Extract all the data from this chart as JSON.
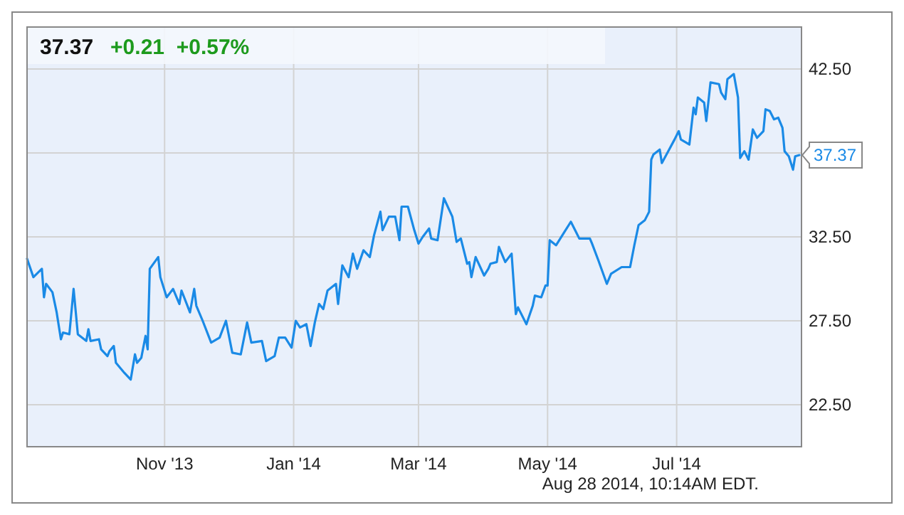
{
  "chart_data": {
    "type": "line",
    "title": "37.37",
    "subtitle": "+0.21  +0.57%",
    "x": [
      "2013-08-28",
      "2013-08-31",
      "2013-09-04",
      "2013-09-05",
      "2013-09-06",
      "2013-09-09",
      "2013-09-11",
      "2013-09-13",
      "2013-09-14",
      "2013-09-17",
      "2013-09-19",
      "2013-09-21",
      "2013-09-25",
      "2013-09-26",
      "2013-09-27",
      "2013-10-01",
      "2013-10-02",
      "2013-10-05",
      "2013-10-06",
      "2013-10-08",
      "2013-10-09",
      "2013-10-13",
      "2013-10-16",
      "2013-10-18",
      "2013-10-19",
      "2013-10-21",
      "2013-10-23",
      "2013-10-24",
      "2013-10-25",
      "2013-10-29",
      "2013-10-30",
      "2013-11-02",
      "2013-11-05",
      "2013-11-08",
      "2013-11-09",
      "2013-11-13",
      "2013-11-15",
      "2013-11-16",
      "2013-11-19",
      "2013-11-23",
      "2013-11-27",
      "2013-11-30",
      "2013-12-03",
      "2013-12-07",
      "2013-12-10",
      "2013-12-12",
      "2013-12-17",
      "2013-12-19",
      "2013-12-23",
      "2013-12-25",
      "2013-12-28",
      "2013-12-31",
      "2014-01-02",
      "2014-01-04",
      "2014-01-07",
      "2014-01-09",
      "2014-01-11",
      "2014-01-13",
      "2014-01-15",
      "2014-01-17",
      "2014-01-21",
      "2014-01-22",
      "2014-01-24",
      "2014-01-27",
      "2014-01-29",
      "2014-01-31",
      "2014-02-03",
      "2014-02-06",
      "2014-02-08",
      "2014-02-11",
      "2014-02-12",
      "2014-02-15",
      "2014-02-18",
      "2014-02-20",
      "2014-02-21",
      "2014-02-24",
      "2014-02-27",
      "2014-03-01",
      "2014-03-03",
      "2014-03-06",
      "2014-03-07",
      "2014-03-10",
      "2014-03-13",
      "2014-03-17",
      "2014-03-19",
      "2014-03-21",
      "2014-03-24",
      "2014-03-25",
      "2014-03-26",
      "2014-03-28",
      "2014-04-01",
      "2014-04-03",
      "2014-04-04",
      "2014-04-07",
      "2014-04-08",
      "2014-04-11",
      "2014-04-14",
      "2014-04-16",
      "2014-04-17",
      "2014-04-21",
      "2014-04-24",
      "2014-04-25",
      "2014-04-28",
      "2014-04-30",
      "2014-05-01",
      "2014-05-02",
      "2014-05-05",
      "2014-05-07",
      "2014-05-09",
      "2014-05-12",
      "2014-05-14",
      "2014-05-16",
      "2014-05-21",
      "2014-05-22",
      "2014-05-25",
      "2014-05-29",
      "2014-05-31",
      "2014-06-05",
      "2014-06-09",
      "2014-06-11",
      "2014-06-13",
      "2014-06-16",
      "2014-06-18",
      "2014-06-19",
      "2014-06-20",
      "2014-06-23",
      "2014-06-24",
      "2014-06-27",
      "2014-06-30",
      "2014-07-02",
      "2014-07-03",
      "2014-07-07",
      "2014-07-09",
      "2014-07-10",
      "2014-07-11",
      "2014-07-14",
      "2014-07-15",
      "2014-07-17",
      "2014-07-21",
      "2014-07-22",
      "2014-07-24",
      "2014-07-25",
      "2014-07-28",
      "2014-07-30",
      "2014-07-31",
      "2014-08-02",
      "2014-08-04",
      "2014-08-06",
      "2014-08-08",
      "2014-08-11",
      "2014-08-12",
      "2014-08-14",
      "2014-08-16",
      "2014-08-18",
      "2014-08-20",
      "2014-08-21",
      "2014-08-23",
      "2014-08-25",
      "2014-08-26",
      "2014-08-28"
    ],
    "series": [
      {
        "color": "#1a8ae6",
        "values": [
          31.2,
          30.1,
          30.6,
          28.9,
          29.7,
          29.2,
          28.0,
          26.4,
          26.8,
          26.7,
          29.4,
          26.7,
          26.3,
          27.0,
          26.3,
          26.4,
          25.8,
          25.4,
          25.7,
          26.0,
          25.0,
          24.4,
          24.0,
          25.5,
          25.0,
          25.3,
          26.6,
          25.8,
          30.6,
          31.3,
          30.1,
          28.9,
          29.4,
          28.5,
          29.3,
          28.0,
          29.4,
          28.4,
          27.5,
          26.2,
          26.5,
          27.5,
          25.6,
          25.5,
          27.4,
          26.2,
          26.3,
          25.1,
          25.4,
          26.5,
          26.5,
          25.9,
          27.5,
          27.1,
          27.3,
          26.0,
          27.4,
          28.5,
          28.2,
          29.3,
          29.7,
          28.5,
          30.8,
          30.1,
          31.5,
          30.6,
          31.7,
          31.3,
          32.6,
          34.0,
          32.9,
          33.7,
          33.7,
          32.3,
          34.3,
          34.3,
          32.9,
          32.1,
          32.5,
          33.0,
          32.4,
          32.3,
          34.8,
          33.7,
          32.2,
          32.4,
          30.9,
          31.0,
          30.1,
          31.3,
          30.2,
          30.6,
          30.9,
          31.0,
          31.9,
          31.0,
          31.5,
          27.9,
          28.3,
          27.3,
          28.4,
          29.0,
          28.9,
          29.6,
          29.6,
          32.3,
          32.0,
          32.4,
          32.8,
          33.4,
          32.9,
          32.4,
          32.4,
          32.1,
          31.1,
          29.7,
          30.3,
          30.7,
          30.7,
          32.0,
          33.2,
          33.5,
          34.0,
          37.1,
          37.4,
          37.7,
          36.9,
          37.6,
          38.3,
          38.8,
          38.3,
          38.0,
          40.2,
          39.8,
          40.8,
          40.5,
          39.4,
          41.7,
          41.6,
          41.1,
          40.7,
          41.9,
          42.2,
          40.8,
          37.2,
          37.6,
          37.1,
          38.9,
          38.4,
          38.8,
          40.1,
          40.0,
          39.5,
          39.6,
          39.0,
          37.6,
          37.3,
          36.5,
          37.3,
          37.37
        ]
      }
    ],
    "xlim": [
      "2013-08-28",
      "2014-08-29"
    ],
    "xticks": [
      {
        "value": "2013-11-01",
        "label": "Nov '13"
      },
      {
        "value": "2014-01-01",
        "label": "Jan '14"
      },
      {
        "value": "2014-03-01",
        "label": "Mar '14"
      },
      {
        "value": "2014-05-01",
        "label": "May '14"
      },
      {
        "value": "2014-07-01",
        "label": "Jul '14"
      }
    ],
    "ylim": [
      20,
      45
    ],
    "yticks": [
      {
        "value": 22.5,
        "label": "22.50"
      },
      {
        "value": 27.5,
        "label": "27.50"
      },
      {
        "value": 32.5,
        "label": "32.50"
      },
      {
        "value": 37.5,
        "label": null
      },
      {
        "value": 42.5,
        "label": "42.50"
      }
    ],
    "grid": true,
    "annotations": [
      {
        "text": "37.37",
        "x": "2014-08-28",
        "y": 37.37
      },
      "Aug 28 2014, 10:14AM EDT."
    ]
  }
}
